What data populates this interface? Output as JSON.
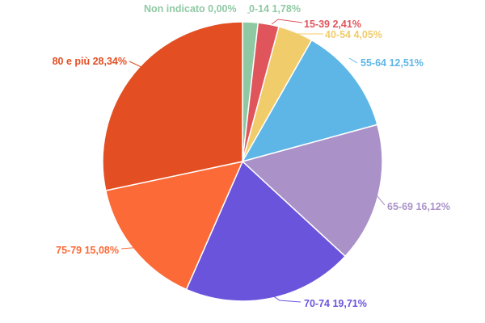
{
  "chart_data": {
    "type": "pie",
    "title": "",
    "start_angle_deg": 0,
    "direction": "clockwise",
    "slices": [
      {
        "label": "Non indicato 0,00%",
        "category": "Non indicato",
        "value": 0.0,
        "color": "#8fc9a3"
      },
      {
        "label": "0-14 1,78%",
        "category": "0-14",
        "value": 1.78,
        "color": "#8fc9a3"
      },
      {
        "label": "15-39 2,41%",
        "category": "15-39",
        "value": 2.41,
        "color": "#e0555c"
      },
      {
        "label": "40-54 4,05%",
        "category": "40-54",
        "value": 4.05,
        "color": "#f0cc6a"
      },
      {
        "label": "55-64 12,51%",
        "category": "55-64",
        "value": 12.51,
        "color": "#5db6e6"
      },
      {
        "label": "65-69 16,12%",
        "category": "65-69",
        "value": 16.12,
        "color": "#aa92c9"
      },
      {
        "label": "70-74 19,71%",
        "category": "70-74",
        "value": 19.71,
        "color": "#6b54dc"
      },
      {
        "label": "75-79 15,08%",
        "category": "75-79",
        "value": 15.08,
        "color": "#fb6a37"
      },
      {
        "label": "80 e più 28,34%",
        "category": "80 e più",
        "value": 28.34,
        "color": "#e34f23"
      }
    ]
  }
}
